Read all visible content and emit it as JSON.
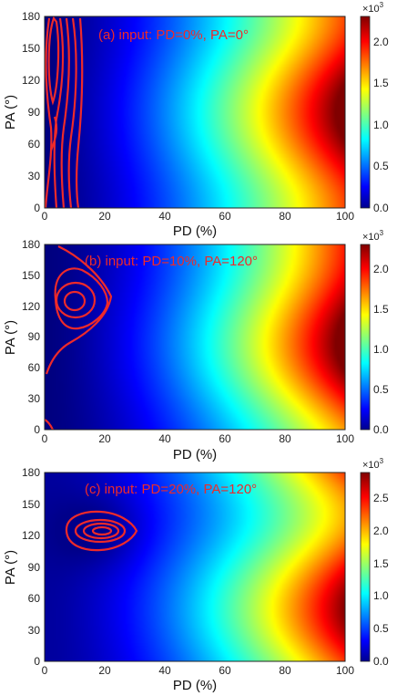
{
  "chart_data": [
    {
      "type": "heatmap",
      "panel": "a",
      "annotation": "(a) input: PD=0%, PA=0°",
      "xlabel": "PD (%)",
      "ylabel": "PA (°)",
      "xlim": [
        0,
        100
      ],
      "ylim": [
        0,
        180
      ],
      "x_ticks": [
        "0",
        "20",
        "40",
        "60",
        "80",
        "100"
      ],
      "y_ticks": [
        "0",
        "30",
        "60",
        "90",
        "120",
        "150",
        "180"
      ],
      "colorbar": {
        "range": [
          0,
          2.3
        ],
        "ticks": [
          "0.0",
          "0.5",
          "1.0",
          "1.5",
          "2.0"
        ],
        "exponent_base": "×10",
        "exponent_power": "3"
      },
      "contours": [
        {
          "pd_center": 4,
          "pa_center": 150,
          "description": "closed loop near PD 1-8, PA 85-180"
        },
        {
          "pd_center": 6,
          "pa_center": 90,
          "description": "nested vertical ridge lines spanning PA 0-180 at PD 2-12"
        }
      ]
    },
    {
      "type": "heatmap",
      "panel": "b",
      "annotation": "(b) input: PD=10%, PA=120°",
      "xlabel": "PD (%)",
      "ylabel": "PA (°)",
      "xlim": [
        0,
        100
      ],
      "ylim": [
        0,
        180
      ],
      "x_ticks": [
        "0",
        "20",
        "40",
        "60",
        "80",
        "100"
      ],
      "y_ticks": [
        "0",
        "30",
        "60",
        "90",
        "120",
        "150",
        "180"
      ],
      "colorbar": {
        "range": [
          0,
          2.3
        ],
        "ticks": [
          "0.0",
          "0.5",
          "1.0",
          "1.5",
          "2.0"
        ],
        "exponent_base": "×10",
        "exponent_power": "3"
      },
      "contours": [
        {
          "pd_center": 10,
          "pa_center": 127,
          "description": "nested closed loops centred near PD 10, PA 127"
        }
      ]
    },
    {
      "type": "heatmap",
      "panel": "c",
      "annotation": "(c) input: PD=20%, PA=120°",
      "xlabel": "PD (%)",
      "ylabel": "PA (°)",
      "xlim": [
        0,
        100
      ],
      "ylim": [
        0,
        180
      ],
      "x_ticks": [
        "0",
        "20",
        "40",
        "60",
        "80",
        "100"
      ],
      "y_ticks": [
        "0",
        "30",
        "60",
        "90",
        "120",
        "150",
        "180"
      ],
      "colorbar": {
        "range": [
          0,
          2.9
        ],
        "ticks": [
          "0.0",
          "0.5",
          "1.0",
          "1.5",
          "2.0",
          "2.5"
        ],
        "exponent_base": "×10",
        "exponent_power": "3"
      },
      "contours": [
        {
          "pd_center": 19,
          "pa_center": 124,
          "description": "nested closed loops centred near PD 19, PA 124"
        }
      ]
    }
  ],
  "colors": {
    "contour": "#ee2a2a",
    "annotation": "#ee2a2a",
    "colormap": "jet"
  }
}
